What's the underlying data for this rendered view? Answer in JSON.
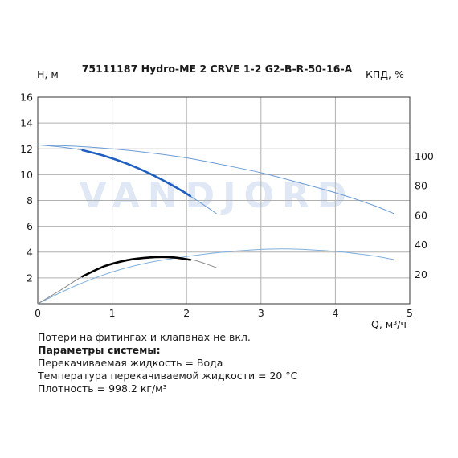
{
  "chart_data": {
    "type": "line",
    "title": "75111187 Hydro-ME 2 CRVE 1-2 G2-B-R-50-16-A",
    "ylabel": "H, м",
    "ylabel_right": "КПД, %",
    "xlabel": "Q, м³/ч",
    "xlim": [
      0,
      5
    ],
    "ylim": [
      0,
      16
    ],
    "ylim_right": [
      0,
      140
    ],
    "x_ticks": [
      "0",
      "1",
      "2",
      "3",
      "4",
      "5"
    ],
    "y_ticks": [
      "2",
      "4",
      "6",
      "8",
      "10",
      "12",
      "14",
      "16"
    ],
    "y_right_ticks": [
      "20",
      "40",
      "60",
      "80",
      "100"
    ],
    "grid": true,
    "watermark": "VANDJORD",
    "colors": {
      "head_max": "#6a9bd6",
      "head_op": "#1f5fbf",
      "eff_max": "#7fb0de",
      "eff_op": "#000000",
      "eff_curve": "#8a8a8a",
      "grid": "#b0b0b0"
    },
    "series": [
      {
        "axis": "left",
        "x": [
          0,
          0.5,
          1.0,
          1.5,
          2.0,
          2.5,
          3.0,
          3.5,
          4.0,
          4.5,
          4.78
        ],
        "y": [
          12.3,
          12.2,
          12.0,
          11.7,
          11.3,
          10.75,
          10.15,
          9.4,
          8.6,
          7.65,
          7.0
        ]
      },
      {
        "axis": "left",
        "x": [
          0,
          0.3,
          0.6,
          0.9,
          1.2,
          1.5,
          1.8,
          2.1,
          2.4
        ],
        "y": [
          12.3,
          12.15,
          11.9,
          11.45,
          10.85,
          10.1,
          9.2,
          8.15,
          7.0
        ]
      },
      {
        "axis": "left",
        "x": [
          0.6,
          0.9,
          1.2,
          1.5,
          1.8,
          2.05
        ],
        "y": [
          11.9,
          11.45,
          10.85,
          10.1,
          9.2,
          8.35
        ]
      },
      {
        "axis": "right",
        "x": [
          0,
          0.5,
          1.0,
          1.5,
          2.0,
          2.5,
          3.0,
          3.3,
          3.5,
          4.0,
          4.5,
          4.78
        ],
        "y": [
          0,
          12,
          21.5,
          28,
          32,
          35,
          36.8,
          37.2,
          37,
          35.5,
          32.5,
          30
        ]
      },
      {
        "axis": "right",
        "x": [
          0,
          0.3,
          0.6,
          0.9,
          1.2,
          1.5,
          1.8,
          2.1,
          2.4
        ],
        "y": [
          0,
          9,
          18.5,
          25.5,
          29.5,
          31.4,
          31.5,
          29.5,
          24.5
        ]
      },
      {
        "axis": "right",
        "x": [
          0.6,
          0.9,
          1.2,
          1.5,
          1.8,
          2.05
        ],
        "y": [
          18.5,
          25.5,
          29.5,
          31.4,
          31.5,
          29.8
        ]
      }
    ]
  },
  "notes": {
    "line1": "Потери на фитингах и клапанах не вкл.",
    "line2": "Параметры системы:",
    "line3": "Перекачиваемая жидкость = Вода",
    "line4": "Температура перекачиваемой жидкости = 20 °C",
    "line5": "Плотность = 998.2 кг/м³"
  }
}
